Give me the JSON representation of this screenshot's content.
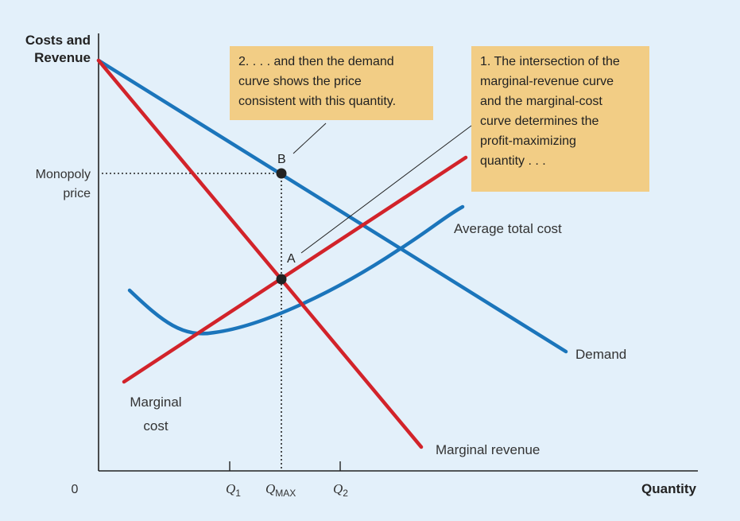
{
  "axes": {
    "y_label_lines": [
      "Costs and",
      "Revenue"
    ],
    "x_label": "Quantity",
    "origin_label": "0"
  },
  "y_tick": {
    "lines": [
      "Monopoly",
      "price"
    ]
  },
  "x_ticks": {
    "q1": {
      "main": "Q",
      "sub": "1"
    },
    "qmax": {
      "main": "Q",
      "sub": "MAX"
    },
    "q2": {
      "main": "Q",
      "sub": "2"
    }
  },
  "curves": {
    "demand": "Demand",
    "marginal_revenue": "Marginal revenue",
    "marginal_cost_lines": [
      "Marginal",
      "cost"
    ],
    "average_total_cost": "Average total cost"
  },
  "points": {
    "a": "A",
    "b": "B"
  },
  "callouts": {
    "demand_note_lines": [
      "2. . . . and then the demand",
      "curve shows the price",
      "consistent with this quantity."
    ],
    "intersection_note_lines": [
      "1. The intersection of the",
      "marginal-revenue curve",
      "and the marginal-cost",
      "curve determines the",
      "profit-maximizing",
      "quantity . . ."
    ]
  },
  "colors": {
    "background": "#e3f0fa",
    "demand_curve": "#1b75bb",
    "marginal_revenue_curve": "#d2232a",
    "marginal_cost_curve": "#d2232a",
    "average_total_cost_curve": "#1b75bb",
    "callout_fill": "#f2cd85",
    "axis": "#222222"
  }
}
